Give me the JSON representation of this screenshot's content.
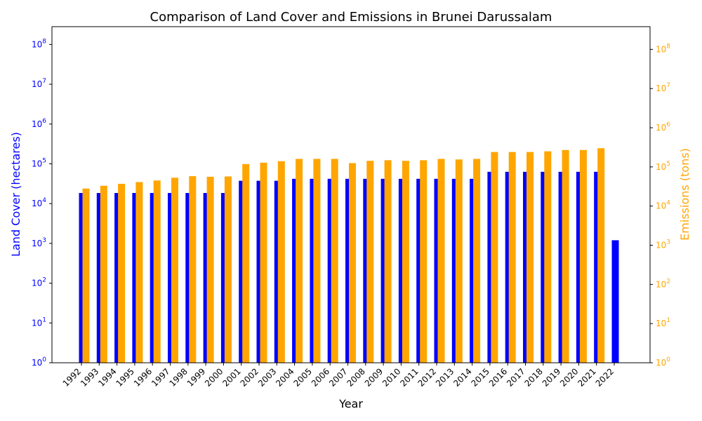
{
  "chart_data": {
    "type": "bar",
    "title": "Comparison of Land Cover and Emissions in Brunei Darussalam",
    "xlabel": "Year",
    "categories": [
      "1992",
      "1993",
      "1994",
      "1995",
      "1996",
      "1997",
      "1998",
      "1999",
      "2000",
      "2001",
      "2002",
      "2003",
      "2004",
      "2005",
      "2006",
      "2007",
      "2008",
      "2009",
      "2010",
      "2011",
      "2012",
      "2013",
      "2014",
      "2015",
      "2016",
      "2017",
      "2018",
      "2019",
      "2020",
      "2021",
      "2022"
    ],
    "left_axis": {
      "label": "Land Cover (hectares)",
      "color": "#0000ff",
      "scale": "log",
      "ylim": [
        1,
        280000000
      ],
      "ticks": [
        {
          "value": 1,
          "base": "10",
          "exp": "0"
        },
        {
          "value": 10,
          "base": "10",
          "exp": "1"
        },
        {
          "value": 100,
          "base": "10",
          "exp": "2"
        },
        {
          "value": 1000,
          "base": "10",
          "exp": "3"
        },
        {
          "value": 10000,
          "base": "10",
          "exp": "4"
        },
        {
          "value": 100000,
          "base": "10",
          "exp": "5"
        },
        {
          "value": 1000000,
          "base": "10",
          "exp": "6"
        },
        {
          "value": 10000000,
          "base": "10",
          "exp": "7"
        },
        {
          "value": 100000000,
          "base": "10",
          "exp": "8"
        }
      ]
    },
    "right_axis": {
      "label": "Emissions (tons)",
      "color": "#ffa500",
      "scale": "log",
      "ylim": [
        1,
        380000000
      ],
      "ticks": [
        {
          "value": 1,
          "base": "10",
          "exp": "0"
        },
        {
          "value": 10,
          "base": "10",
          "exp": "1"
        },
        {
          "value": 100,
          "base": "10",
          "exp": "2"
        },
        {
          "value": 1000,
          "base": "10",
          "exp": "3"
        },
        {
          "value": 10000,
          "base": "10",
          "exp": "4"
        },
        {
          "value": 100000,
          "base": "10",
          "exp": "5"
        },
        {
          "value": 1000000,
          "base": "10",
          "exp": "6"
        },
        {
          "value": 10000000,
          "base": "10",
          "exp": "7"
        },
        {
          "value": 100000000,
          "base": "10",
          "exp": "8"
        }
      ]
    },
    "series": [
      {
        "axis": "left",
        "color": "#0000ff",
        "values": [
          18500,
          18500,
          18500,
          18500,
          18500,
          18500,
          18500,
          18500,
          18500,
          37500,
          37500,
          37500,
          42000,
          42000,
          42000,
          42000,
          42000,
          42000,
          42000,
          42000,
          42000,
          42000,
          42000,
          63000,
          63000,
          63000,
          63000,
          63000,
          63000,
          63000,
          1200
        ]
      },
      {
        "axis": "right",
        "color": "#ffa500",
        "values": [
          28000,
          33000,
          37000,
          41000,
          45000,
          53000,
          58000,
          56000,
          57000,
          118000,
          128000,
          140000,
          160000,
          160000,
          160000,
          125000,
          143000,
          148000,
          143000,
          148000,
          160000,
          155000,
          160000,
          240000,
          240000,
          240000,
          250000,
          270000,
          270000,
          300000,
          null
        ]
      }
    ],
    "grid": false
  }
}
